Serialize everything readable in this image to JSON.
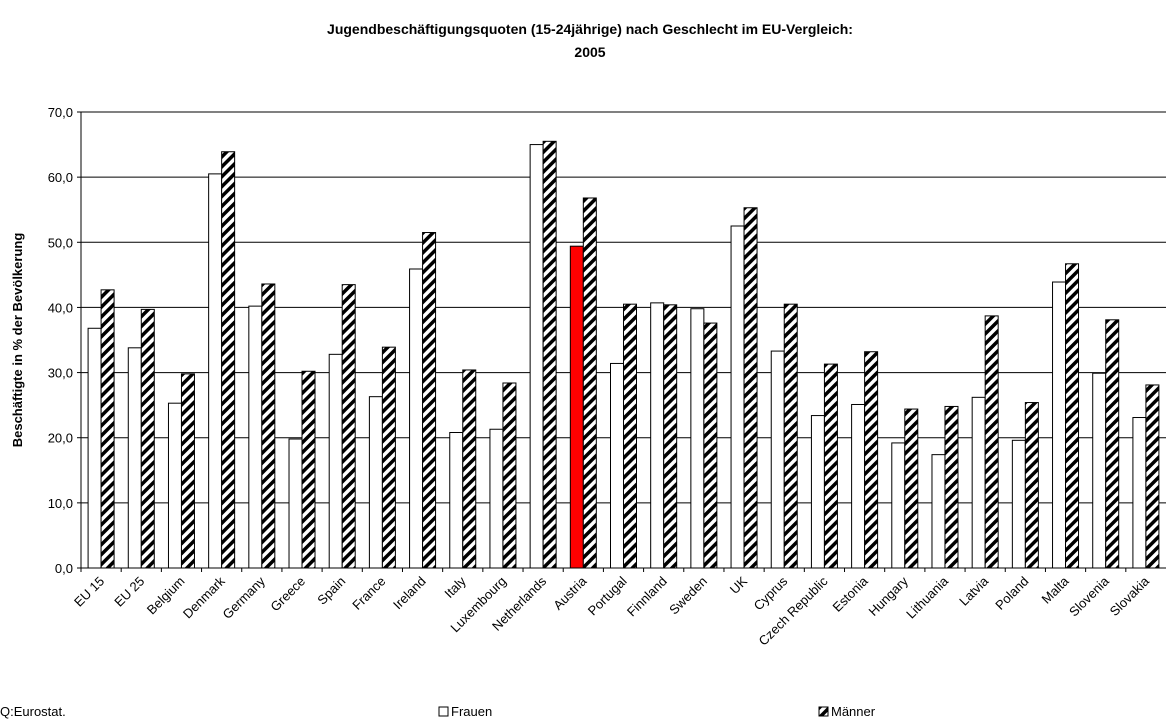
{
  "chart_data": {
    "type": "bar",
    "title": [
      "Jugendbeschäftigungsquoten (15-24jährige) nach Geschlecht im EU-Vergleich:",
      "2005"
    ],
    "y_label": "Beschäftigte in % der Bevölkerung",
    "source": "Q:Eurostat.",
    "legend": "bottom",
    "grid": true,
    "categories": [
      "EU 15",
      "EU 25",
      "Belgium",
      "Denmark",
      "Germany",
      "Greece",
      "Spain",
      "France",
      "Ireland",
      "Italy",
      "Luxembourg",
      "Netherlands",
      "Austria",
      "Portugal",
      "Finnland",
      "Sweden",
      "UK",
      "Cyprus",
      "Czech Republic",
      "Estonia",
      "Hungary",
      "Lithuania",
      "Latvia",
      "Poland",
      "Malta",
      "Slovenia",
      "Slovakia"
    ],
    "series": [
      {
        "name": "Frauen",
        "color": "#ffffff",
        "pattern": "solid",
        "colors": [
          "#ffffff",
          "#ffffff",
          "#ffffff",
          "#ffffff",
          "#ffffff",
          "#ffffff",
          "#ffffff",
          "#ffffff",
          "#ffffff",
          "#ffffff",
          "#ffffff",
          "#ffffff",
          "#ff0000",
          "#ffffff",
          "#ffffff",
          "#ffffff",
          "#ffffff",
          "#ffffff",
          "#ffffff",
          "#ffffff",
          "#ffffff",
          "#ffffff",
          "#ffffff",
          "#ffffff",
          "#ffffff",
          "#ffffff",
          "#ffffff"
        ],
        "values": [
          36.8,
          33.8,
          25.3,
          60.5,
          40.2,
          19.8,
          32.8,
          26.3,
          45.9,
          20.8,
          21.3,
          65.0,
          49.4,
          31.4,
          40.7,
          39.8,
          52.5,
          33.3,
          23.4,
          25.1,
          19.2,
          17.4,
          26.2,
          19.6,
          43.9,
          29.9,
          23.1
        ]
      },
      {
        "name": "Männer",
        "color": "#000000",
        "pattern": "diagonal",
        "values": [
          42.7,
          39.7,
          29.8,
          63.9,
          43.6,
          30.2,
          43.5,
          33.9,
          51.5,
          30.4,
          28.4,
          65.5,
          56.8,
          40.5,
          40.4,
          37.6,
          55.3,
          40.5,
          31.3,
          33.2,
          24.4,
          24.8,
          38.7,
          25.4,
          46.7,
          38.1,
          28.1
        ]
      }
    ],
    "ylim": [
      0,
      70
    ],
    "yticks": [
      {
        "value": 0,
        "label": "0,0"
      },
      {
        "value": 10,
        "label": "10,0"
      },
      {
        "value": 20,
        "label": "20,0"
      },
      {
        "value": 30,
        "label": "30,0"
      },
      {
        "value": 40,
        "label": "40,0"
      },
      {
        "value": 50,
        "label": "50,0"
      },
      {
        "value": 60,
        "label": "60,0"
      },
      {
        "value": 70,
        "label": "70,0"
      }
    ]
  }
}
